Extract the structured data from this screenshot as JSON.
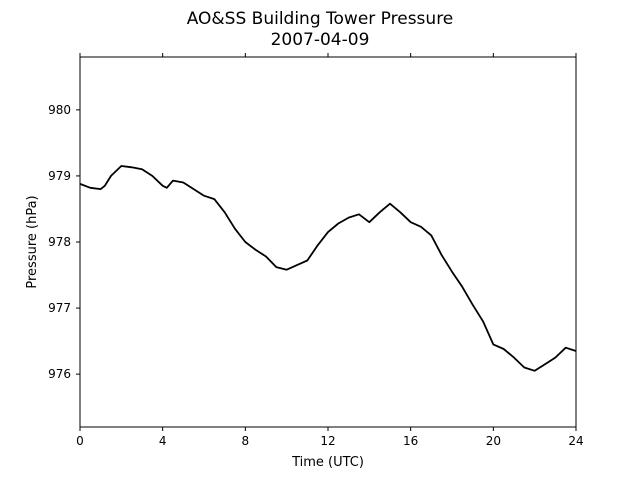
{
  "chart_data": {
    "type": "line",
    "title": "AO&SS Building Tower Pressure",
    "subtitle": "2007-04-09",
    "xlabel": "Time (UTC)",
    "ylabel": "Pressure (hPa)",
    "xlim": [
      0,
      24
    ],
    "ylim": [
      975.2,
      980.8
    ],
    "xticks": [
      0,
      4,
      8,
      12,
      16,
      20,
      24
    ],
    "yticks": [
      976,
      977,
      978,
      979,
      980
    ],
    "grid": false,
    "line_color": "#000000",
    "series": [
      {
        "x": [
          0,
          0.5,
          1,
          1.2,
          1.5,
          2,
          2.5,
          3,
          3.5,
          4,
          4.2,
          4.5,
          5,
          5.5,
          6,
          6.5,
          7,
          7.5,
          8,
          8.5,
          9,
          9.5,
          10,
          10.5,
          11,
          11.5,
          12,
          12.5,
          13,
          13.5,
          14,
          14.5,
          15,
          15.5,
          16,
          16.5,
          17,
          17.5,
          18,
          18.5,
          19,
          19.5,
          20,
          20.5,
          21,
          21.5,
          22,
          22.5,
          23,
          23.5,
          24
        ],
        "y": [
          978.88,
          978.82,
          978.8,
          978.85,
          979.0,
          979.15,
          979.13,
          979.1,
          979.0,
          978.85,
          978.82,
          978.93,
          978.9,
          978.8,
          978.7,
          978.65,
          978.45,
          978.2,
          978.0,
          977.88,
          977.78,
          977.62,
          977.58,
          977.65,
          977.72,
          977.95,
          978.15,
          978.28,
          978.37,
          978.42,
          978.3,
          978.45,
          978.58,
          978.45,
          978.3,
          978.23,
          978.1,
          977.8,
          977.55,
          977.32,
          977.05,
          976.8,
          976.45,
          976.38,
          976.25,
          976.1,
          976.05,
          976.15,
          976.25,
          976.4,
          976.35
        ]
      }
    ]
  }
}
